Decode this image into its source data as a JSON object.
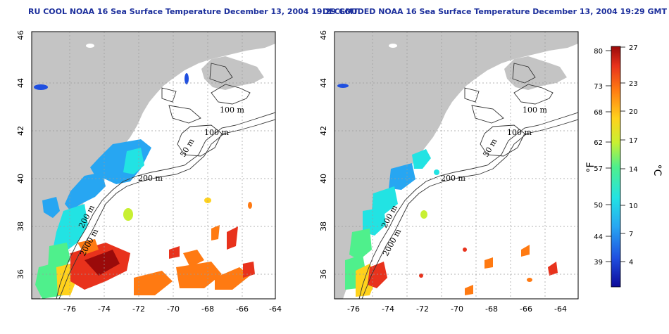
{
  "panels": [
    {
      "title": "RU COOL NOAA 16 Sea Surface Temperature December 13, 2004 19:29 GMT",
      "contour_labels": [
        "100 m",
        "100 m",
        "50 m",
        "200 m",
        "200 m",
        "2000 m"
      ]
    },
    {
      "title": "DECLOUDED NOAA 16 Sea Surface Temperature December 13, 2004 19:29 GMT",
      "contour_labels": [
        "100 m",
        "100 m",
        "50 m",
        "200 m",
        "200 m",
        "2000 m"
      ]
    }
  ],
  "axes": {
    "lon_ticks": [
      "-76",
      "-74",
      "-72",
      "-70",
      "-68",
      "-66",
      "-64"
    ],
    "lat_ticks": [
      "36",
      "38",
      "40",
      "42",
      "44",
      "46"
    ],
    "lon_range": [
      -77.2,
      -62.9
    ],
    "lat_range": [
      35,
      46
    ]
  },
  "colorbar": {
    "fahrenheit_ticks": [
      "80",
      "73",
      "68",
      "62",
      "57",
      "50",
      "44",
      "39"
    ],
    "celsius_ticks": [
      "27",
      "23",
      "20",
      "17",
      "14",
      "10",
      "7",
      "4"
    ],
    "fahrenheit_unit": "°F",
    "celsius_unit": "°C",
    "colors": [
      "#0d0a9a",
      "#1f4fe0",
      "#27a6f2",
      "#22e3e3",
      "#4ff08c",
      "#c8f032",
      "#ffd21c",
      "#ff7a12",
      "#e8321c",
      "#9a0a0a"
    ]
  },
  "colors": {
    "land": "#c4c4c4",
    "grid": "#9a9a9a",
    "title": "#1c2f9c"
  }
}
